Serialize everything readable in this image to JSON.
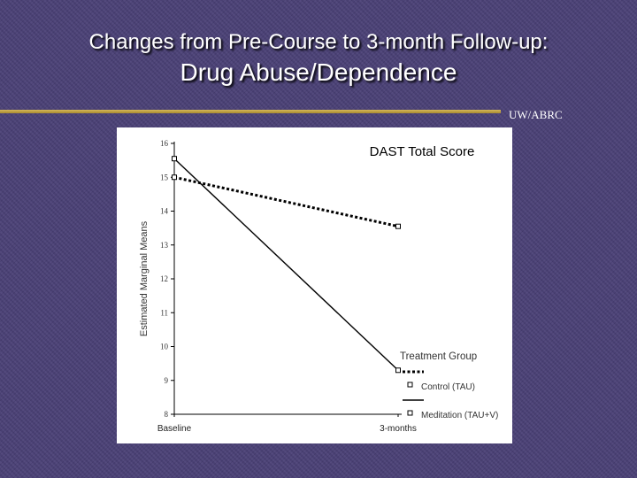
{
  "slide": {
    "title_line1": "Changes from Pre-Course to 3-month Follow-up:",
    "title_line2": "Drug Abuse/Dependence",
    "org_label": "UW/ABRC",
    "rule_color": "#c9a94a",
    "background_color": "#4a4076"
  },
  "chart_data": {
    "type": "line",
    "title": "DAST Total Score",
    "xlabel": "",
    "ylabel": "Estimated Marginal Means",
    "categories": [
      "Baseline",
      "3-months"
    ],
    "ylim": [
      8,
      16
    ],
    "yticks": [
      "8",
      "9",
      "10",
      "11",
      "12",
      "13",
      "14",
      "15",
      "16"
    ],
    "legend_title": "Treatment Group",
    "legend_position": "bottom-right",
    "series": [
      {
        "name": "Control (TAU)",
        "values": [
          15.0,
          13.55
        ],
        "style": "dotted"
      },
      {
        "name": "Meditation (TAU+V)",
        "values": [
          15.55,
          9.3
        ],
        "style": "solid"
      }
    ]
  }
}
